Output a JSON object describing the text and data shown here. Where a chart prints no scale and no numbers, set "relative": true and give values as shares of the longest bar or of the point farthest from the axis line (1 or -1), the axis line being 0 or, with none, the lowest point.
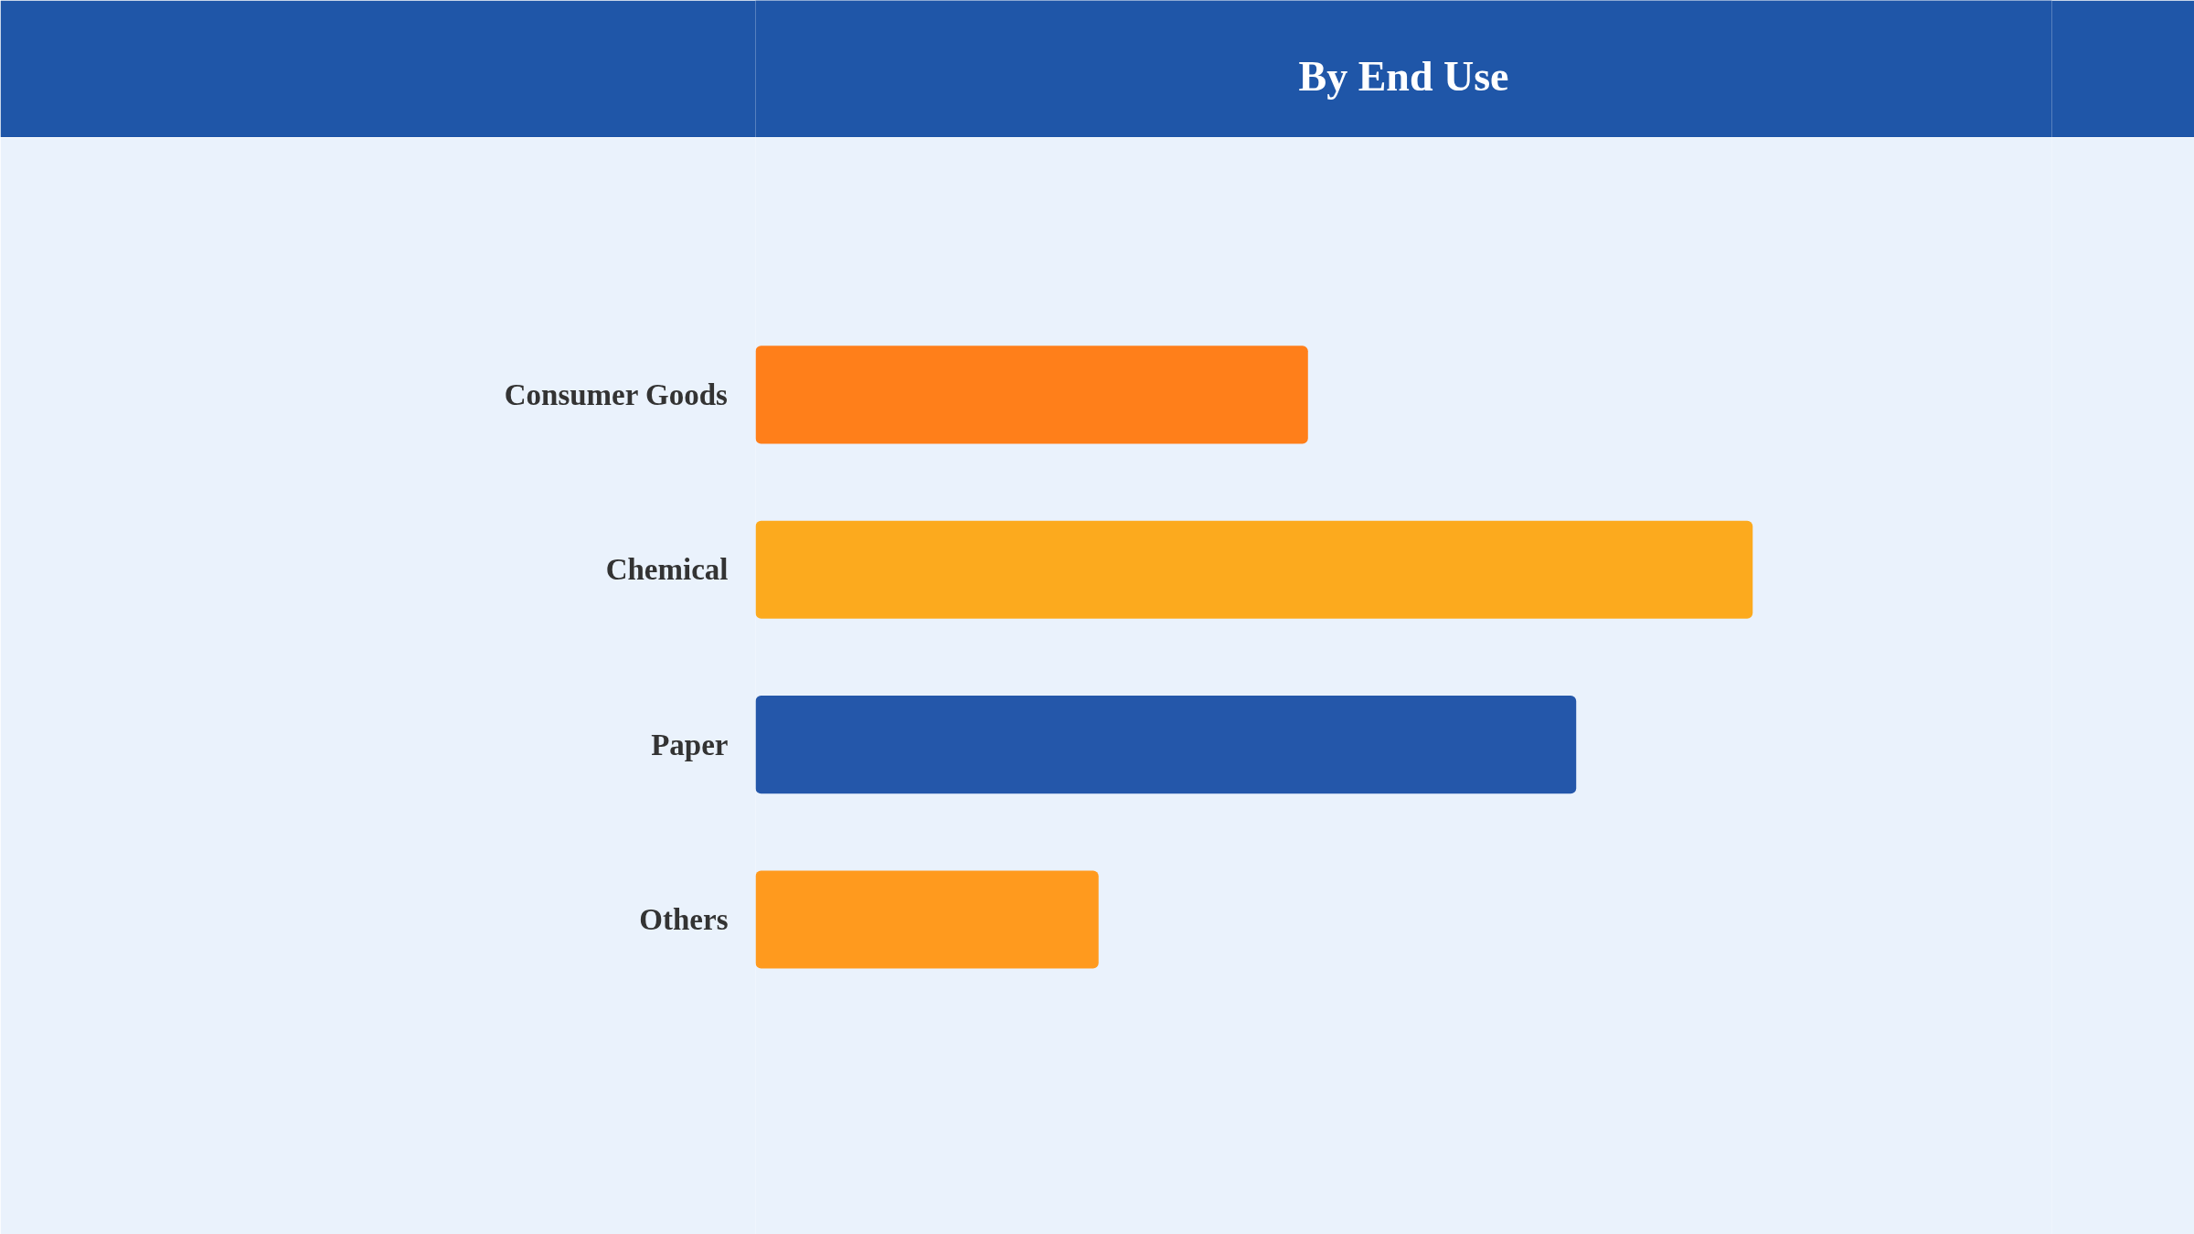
{
  "chart_data": {
    "type": "bar",
    "orientation": "horizontal",
    "relative": true,
    "title": "By End Use",
    "categories": [
      "Consumer Goods",
      "Chemical",
      "Paper",
      "Others"
    ],
    "values": [
      0.554,
      1,
      0.823,
      0.344
    ],
    "colors": [
      "#ff7f1a",
      "#fcaa1e",
      "#2457aa",
      "#ff9a1e"
    ]
  }
}
